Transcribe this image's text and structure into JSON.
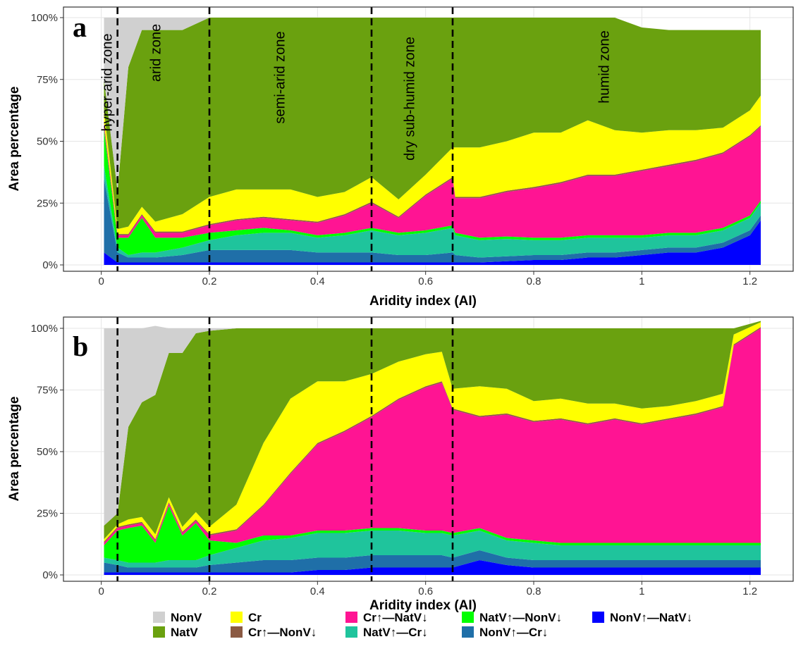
{
  "chart_data": [
    {
      "panel": "a",
      "type": "area",
      "stacked": true,
      "xlabel": "Aridity index (AI)",
      "ylabel": "Area percentage",
      "xlim": [
        -0.07,
        1.28
      ],
      "ylim": [
        0,
        100
      ],
      "x_ticks": [
        "0",
        "0.2",
        "0.4",
        "0.6",
        "0.8",
        "1",
        "1.2"
      ],
      "x_tick_values": [
        0,
        0.2,
        0.4,
        0.6,
        0.8,
        1.0,
        1.2
      ],
      "y_ticks": [
        "0%",
        "25%",
        "50%",
        "75%",
        "100%"
      ],
      "y_tick_values": [
        0,
        25,
        50,
        75,
        100
      ],
      "grid": true,
      "zone_boundaries": [
        0.03,
        0.2,
        0.5,
        0.65
      ],
      "zone_labels": [
        {
          "text": "hyper-arid zone",
          "x": 0.01
        },
        {
          "text": "arid zone",
          "x": 0.1
        },
        {
          "text": "semi-arid zone",
          "x": 0.33
        },
        {
          "text": "dry sub-humid zone",
          "x": 0.57
        },
        {
          "text": "humid zone",
          "x": 0.93
        }
      ],
      "x": [
        0.005,
        0.03,
        0.05,
        0.075,
        0.1,
        0.15,
        0.2,
        0.25,
        0.3,
        0.35,
        0.4,
        0.45,
        0.5,
        0.55,
        0.6,
        0.65,
        0.655,
        0.7,
        0.75,
        0.8,
        0.85,
        0.9,
        0.95,
        1.0,
        1.05,
        1.1,
        1.15,
        1.2,
        1.22
      ],
      "series": [
        {
          "name": "NonV↑—NatV↓",
          "values": [
            5,
            1,
            1,
            1,
            1,
            1,
            1,
            1,
            1,
            1,
            1,
            1,
            1,
            1,
            1,
            1,
            1,
            1,
            1.5,
            2,
            2,
            3,
            3,
            4,
            5,
            5,
            7,
            12,
            18
          ]
        },
        {
          "name": "NonV↑—Cr↓",
          "values": [
            30,
            4,
            2,
            2,
            2,
            3,
            5,
            5,
            5,
            5,
            4,
            4,
            4,
            3,
            3,
            4,
            3,
            2,
            2,
            2,
            2,
            2,
            2,
            2,
            2,
            2,
            2,
            2,
            2
          ]
        },
        {
          "name": "NatV↑—Cr↓",
          "values": [
            5,
            2,
            1,
            2,
            2,
            3,
            4,
            6,
            7,
            7,
            6,
            7,
            9,
            8,
            9,
            10,
            8,
            7,
            7,
            6,
            6,
            6,
            6,
            5,
            5,
            5,
            5,
            5,
            5
          ]
        },
        {
          "name": "NatV↑—NonV↓",
          "values": [
            15,
            4,
            7,
            14,
            6,
            4,
            3,
            2,
            2,
            1,
            1,
            1,
            1,
            1,
            1,
            1,
            1,
            1,
            1,
            1,
            1,
            1,
            1,
            1,
            1,
            1,
            1,
            1,
            1
          ]
        },
        {
          "name": "Cr↑—NatV↓",
          "values": [
            2,
            1,
            1,
            1,
            2,
            2,
            3,
            4,
            4,
            4,
            5,
            7,
            10,
            6,
            14,
            19,
            14,
            16,
            18,
            20,
            22,
            24,
            24,
            26,
            27,
            29,
            30,
            32,
            30
          ]
        },
        {
          "name": "Cr↑—NonV↓",
          "values": [
            0.5,
            0.5,
            0.5,
            0.5,
            0.5,
            0.5,
            0.5,
            0.5,
            0.5,
            0.5,
            0.5,
            0.5,
            0.5,
            0.5,
            0.5,
            0.5,
            0.5,
            0.5,
            0.5,
            0.5,
            0.5,
            0.5,
            0.5,
            0.5,
            0.5,
            0.5,
            0.5,
            0.5,
            0.5
          ]
        },
        {
          "name": "Cr",
          "values": [
            5,
            2,
            3,
            3,
            4,
            7,
            11,
            12,
            11,
            12,
            10,
            9,
            10,
            7,
            8,
            12,
            20,
            20,
            20,
            22,
            20,
            22,
            18,
            15,
            14,
            12,
            10,
            10,
            12
          ]
        },
        {
          "name": "NatV",
          "values": [
            12.5,
            15.5,
            64.5,
            71.5,
            77.5,
            74.5,
            72.5,
            69.5,
            69.5,
            69.5,
            72.5,
            70.5,
            64.5,
            73.5,
            63.5,
            52.5,
            52.5,
            52.5,
            50,
            46.5,
            46.5,
            41.5,
            45.5,
            42.5,
            40.5,
            40.5,
            39.5,
            32.5,
            26.5
          ]
        },
        {
          "name": "NonV",
          "values": [
            25,
            70,
            20,
            5,
            5,
            5,
            0,
            0,
            0,
            0,
            0,
            0,
            0,
            0,
            0,
            0,
            0,
            0,
            0,
            0,
            0,
            0,
            0,
            0,
            0,
            0,
            0,
            0,
            0
          ]
        }
      ]
    },
    {
      "panel": "b",
      "type": "area",
      "stacked": true,
      "xlabel": "Aridity index (AI)",
      "ylabel": "Area percentage",
      "xlim": [
        -0.07,
        1.28
      ],
      "ylim": [
        0,
        100
      ],
      "x_ticks": [
        "0",
        "0.2",
        "0.4",
        "0.6",
        "0.8",
        "1",
        "1.2"
      ],
      "x_tick_values": [
        0,
        0.2,
        0.4,
        0.6,
        0.8,
        1.0,
        1.2
      ],
      "y_ticks": [
        "0%",
        "25%",
        "50%",
        "75%",
        "100%"
      ],
      "y_tick_values": [
        0,
        25,
        50,
        75,
        100
      ],
      "grid": true,
      "zone_boundaries": [
        0.03,
        0.2,
        0.5,
        0.65
      ],
      "x": [
        0.005,
        0.03,
        0.05,
        0.075,
        0.1,
        0.125,
        0.15,
        0.175,
        0.2,
        0.25,
        0.3,
        0.35,
        0.4,
        0.45,
        0.5,
        0.55,
        0.6,
        0.63,
        0.65,
        0.7,
        0.75,
        0.8,
        0.85,
        0.9,
        0.95,
        1.0,
        1.05,
        1.1,
        1.15,
        1.17,
        1.22
      ],
      "series": [
        {
          "name": "NonV↑—NatV↓",
          "values": [
            1,
            1,
            1,
            1,
            1,
            1,
            1,
            1,
            1,
            1,
            1,
            1,
            2,
            2,
            3,
            3,
            3,
            3,
            3,
            6,
            4,
            3,
            3,
            3,
            3,
            3,
            3,
            3,
            3,
            3,
            3
          ]
        },
        {
          "name": "NonV↑—Cr↓",
          "values": [
            4,
            3,
            2,
            2,
            2,
            2,
            2,
            2,
            3,
            4,
            5,
            5,
            5,
            5,
            5,
            5,
            5,
            5,
            4,
            4,
            3,
            3,
            3,
            3,
            3,
            3,
            3,
            3,
            3,
            3,
            3
          ]
        },
        {
          "name": "NatV↑—Cr↓",
          "values": [
            2,
            2,
            2,
            2,
            2,
            3,
            3,
            3,
            4,
            6,
            8,
            9,
            10,
            10,
            10,
            10,
            9,
            9,
            9,
            8,
            7,
            7,
            6,
            6,
            6,
            6,
            6,
            6,
            6,
            6,
            6
          ]
        },
        {
          "name": "NatV↑—NonV↓",
          "values": [
            5,
            12,
            14,
            15,
            8,
            22,
            10,
            15,
            6,
            2,
            2,
            1,
            1,
            1,
            1,
            1,
            1,
            1,
            1,
            1,
            1,
            1,
            1,
            1,
            1,
            1,
            1,
            1,
            1,
            1,
            1
          ]
        },
        {
          "name": "Cr↑—NatV↓",
          "values": [
            1,
            1,
            1,
            1,
            1,
            1,
            1,
            1,
            2,
            5,
            12,
            25,
            35,
            40,
            45,
            52,
            58,
            60,
            50,
            45,
            50,
            48,
            50,
            48,
            50,
            48,
            50,
            52,
            55,
            80,
            87
          ]
        },
        {
          "name": "Cr↑—NonV↓",
          "values": [
            0.5,
            0.5,
            0.5,
            0.5,
            0.5,
            0.5,
            0.5,
            0.5,
            0.5,
            0.5,
            0.5,
            0.5,
            0.5,
            0.5,
            0.5,
            0.5,
            0.5,
            0.5,
            0.5,
            0.5,
            0.5,
            0.5,
            0.5,
            0.5,
            0.5,
            0.5,
            0.5,
            0.5,
            0.5,
            0.5,
            0.5
          ]
        },
        {
          "name": "Cr",
          "values": [
            1,
            1,
            2,
            2,
            2,
            2,
            2,
            3,
            3,
            10,
            25,
            30,
            25,
            20,
            17,
            15,
            13,
            12,
            8,
            12,
            10,
            8,
            8,
            8,
            6,
            6,
            5,
            5,
            5,
            4,
            2
          ]
        },
        {
          "name": "NatV",
          "values": [
            5.5,
            4.5,
            37.5,
            46.5,
            56.5,
            58.5,
            70.5,
            72.5,
            79.5,
            71.5,
            46.5,
            28.5,
            21.5,
            21.5,
            18.5,
            13.5,
            10.5,
            9.5,
            24.5,
            23.5,
            24.5,
            29.5,
            28.5,
            30.5,
            30.5,
            32.5,
            31.5,
            29.5,
            26.5,
            2.5,
            0.5
          ]
        },
        {
          "name": "NonV",
          "values": [
            80,
            75,
            40,
            30,
            28,
            10,
            10,
            2,
            1,
            0,
            0,
            0,
            0,
            0,
            0,
            0,
            0,
            0,
            0,
            0,
            0,
            0,
            0,
            0,
            0,
            0,
            0,
            0,
            0,
            0,
            0
          ]
        }
      ]
    }
  ],
  "colors": {
    "NonV": "#d0d0d0",
    "NatV": "#6aa10f",
    "Cr": "#ffff00",
    "Cr↑—NonV↓": "#8b5a43",
    "Cr↑—NatV↓": "#ff1493",
    "NatV↑—Cr↓": "#1fc49c",
    "NatV↑—NonV↓": "#00ff00",
    "NonV↑—Cr↓": "#1f6fa8",
    "NonV↑—NatV↓": "#0000ff"
  },
  "legend": {
    "position": "bottom",
    "items": [
      "NonV",
      "NatV",
      "Cr",
      "Cr↑—NonV↓",
      "Cr↑—NatV↓",
      "NatV↑—Cr↓",
      "NatV↑—NonV↓",
      "NonV↑—Cr↓",
      "NonV↑—NatV↓"
    ]
  }
}
